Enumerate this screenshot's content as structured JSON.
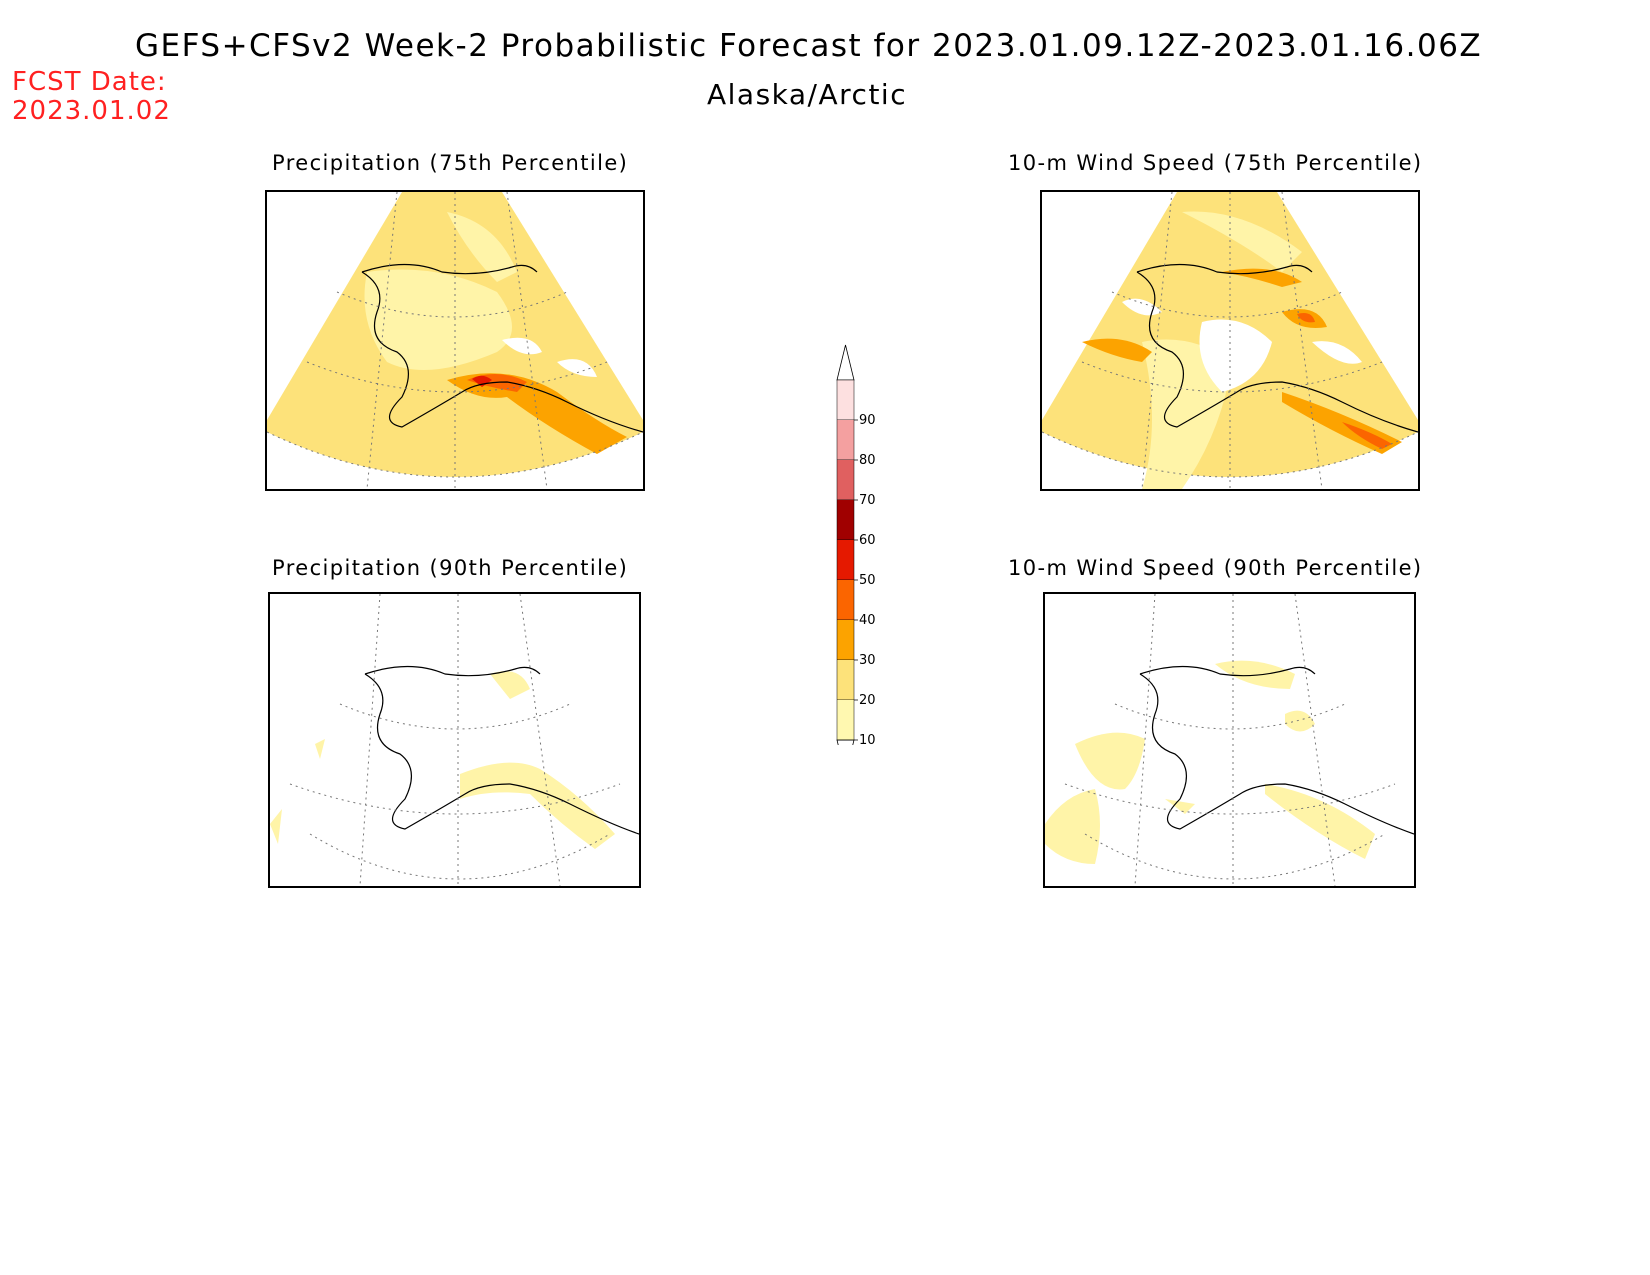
{
  "header": {
    "title": "GEFS+CFSv2 Week-2 Probabilistic Forecast for 2023.01.09.12Z-2023.01.16.06Z",
    "region": "Alaska/Arctic",
    "fcst_label": "FCST Date:",
    "fcst_date": "2023.01.02"
  },
  "panels": [
    {
      "title": "Precipitation (75th Percentile)"
    },
    {
      "title": "10-m Wind Speed (75th Percentile)"
    },
    {
      "title": "Precipitation (90th Percentile)"
    },
    {
      "title": "10-m Wind Speed (90th Percentile)"
    }
  ],
  "colorbar": {
    "ticks": [
      "10",
      "20",
      "30",
      "40",
      "50",
      "60",
      "70",
      "80",
      "90"
    ],
    "colors": {
      "10": "#fff8b0",
      "20": "#fde27a",
      "30": "#fca300",
      "40": "#fb6500",
      "50": "#e51900",
      "60": "#a00000",
      "70": "#e06060",
      "80": "#f4a0a0",
      "90": "#fde0e0"
    }
  }
}
